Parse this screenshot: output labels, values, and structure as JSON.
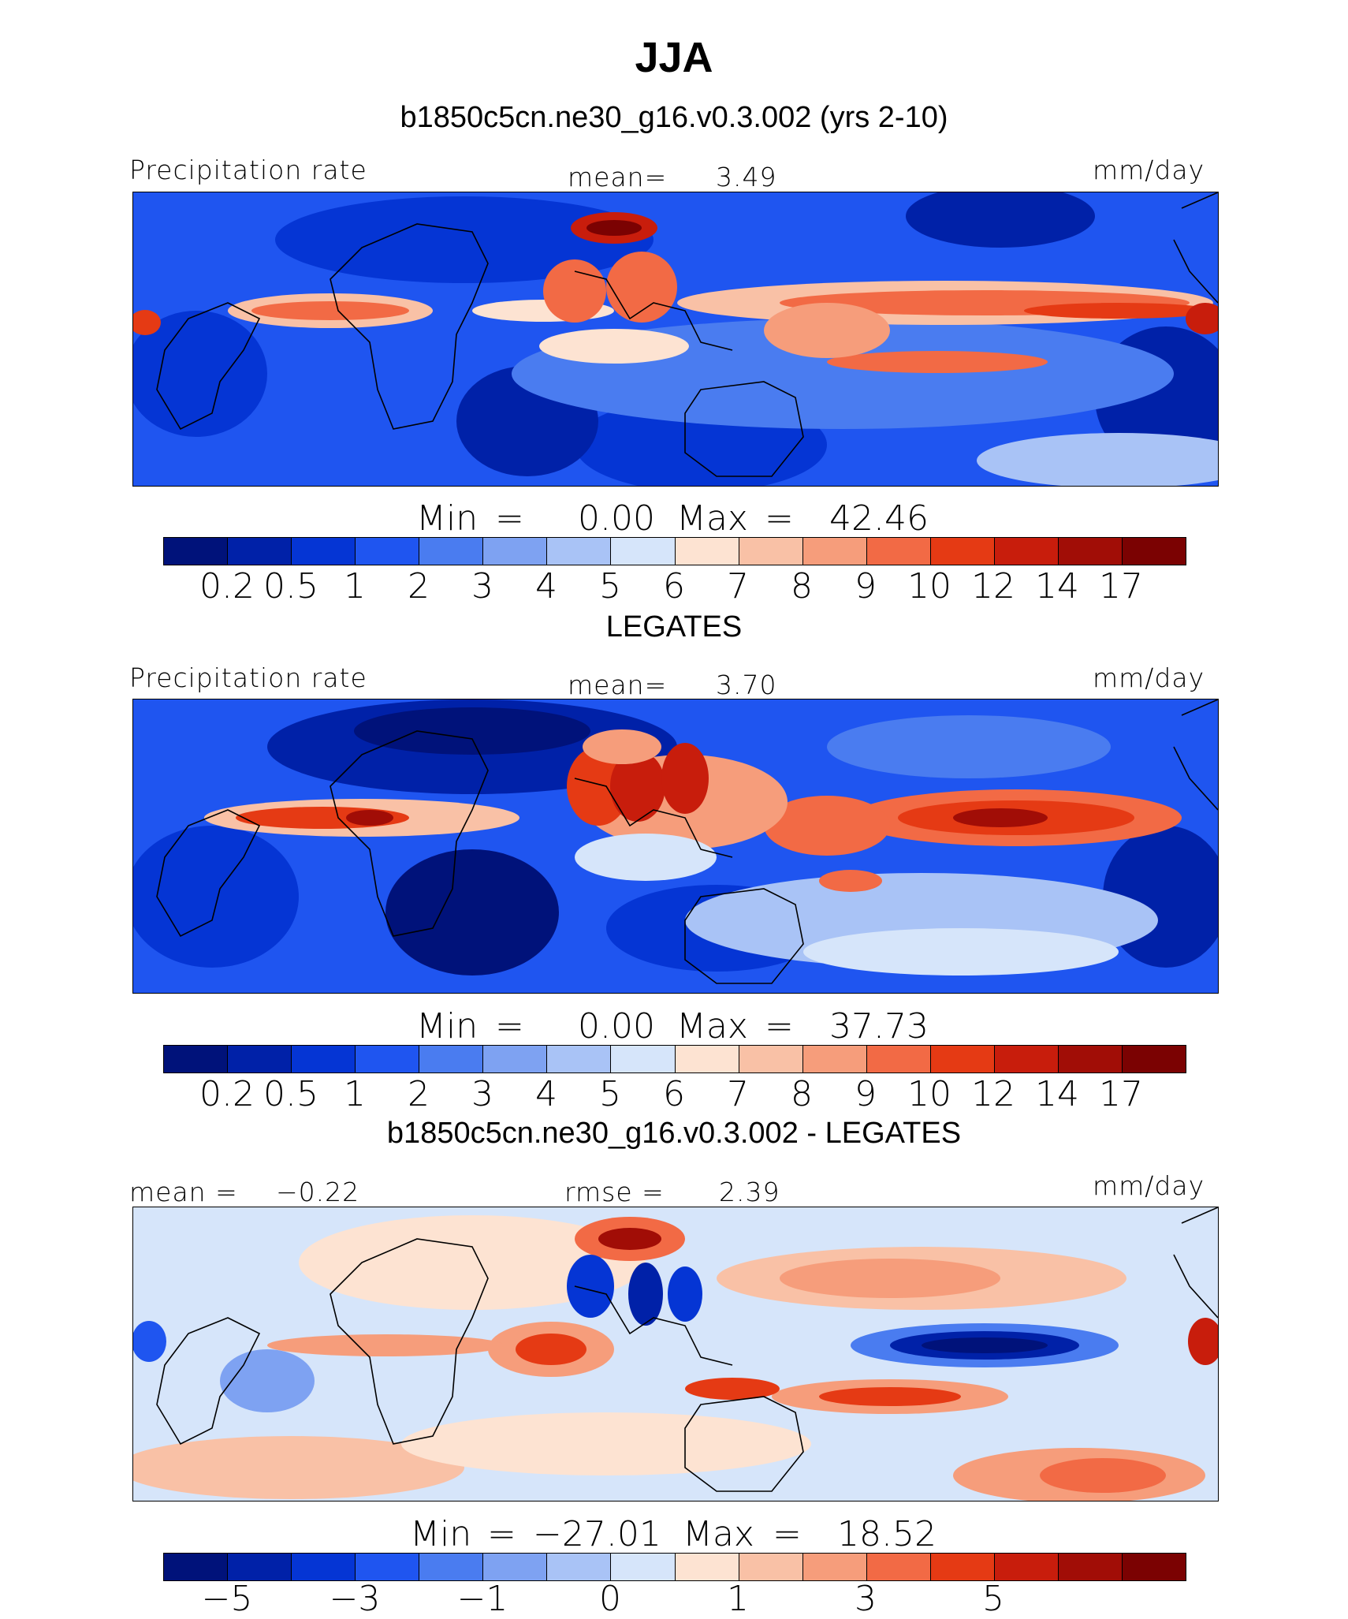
{
  "title": "JJA",
  "panels": [
    {
      "heading": "b1850c5cn.ne30_g16.v0.3.002 (yrs 2-10)",
      "left_label": "Precipitation rate",
      "center_label": "mean=",
      "center_value": "3.49",
      "units": "mm/day",
      "min_label": "Min",
      "eq": "=",
      "min_value": "0.00",
      "max_label": "Max",
      "max_value": "42.46",
      "ticks": [
        "0.2",
        "0.5",
        "1",
        "2",
        "3",
        "4",
        "5",
        "6",
        "7",
        "8",
        "9",
        "10",
        "12",
        "14",
        "17"
      ]
    },
    {
      "heading": "LEGATES",
      "left_label": "Precipitation rate",
      "center_label": "mean=",
      "center_value": "3.70",
      "units": "mm/day",
      "min_label": "Min",
      "eq": "=",
      "min_value": "0.00",
      "max_label": "Max",
      "max_value": "37.73",
      "ticks": [
        "0.2",
        "0.5",
        "1",
        "2",
        "3",
        "4",
        "5",
        "6",
        "7",
        "8",
        "9",
        "10",
        "12",
        "14",
        "17"
      ]
    },
    {
      "heading": "b1850c5cn.ne30_g16.v0.3.002 - LEGATES",
      "left_label": "mean =",
      "left_value": "−0.22",
      "center_label": "rmse =",
      "center_value": "2.39",
      "units": "mm/day",
      "min_label": "Min",
      "eq": "=",
      "min_value": "−27.01",
      "max_label": "Max",
      "max_value": "18.52",
      "ticks": [
        "−5",
        "−3",
        "−1",
        "0",
        "1",
        "3",
        "5"
      ]
    }
  ],
  "colors": {
    "scale": [
      "#00127a",
      "#0021a8",
      "#0535d4",
      "#1f55f0",
      "#4a7cf0",
      "#7ea2f2",
      "#a9c3f6",
      "#d6e5fa",
      "#fde3d2",
      "#f9c1a6",
      "#f69d7b",
      "#f26a45",
      "#e53a14",
      "#c81d0c",
      "#a10d06",
      "#7b0202"
    ],
    "land_outline": "#000000"
  }
}
